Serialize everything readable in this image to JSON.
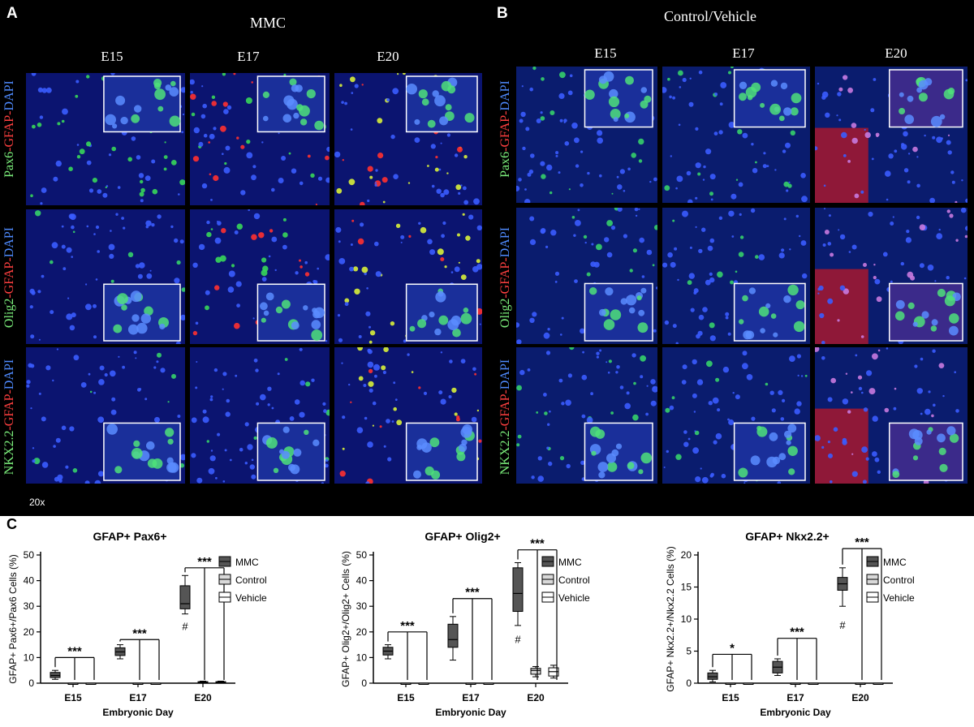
{
  "figure": {
    "panel_a": {
      "letter": "A",
      "group": "MMC",
      "columns": [
        "E15",
        "E17",
        "E20"
      ],
      "rows": [
        {
          "marker": "Pax6",
          "gfap": "GFAP",
          "dapi": "DAPI"
        },
        {
          "marker": "Olig2",
          "gfap": "GFAP",
          "dapi": "DAPI"
        },
        {
          "marker": "NKX2.2",
          "gfap": "GFAP",
          "dapi": "DAPI"
        }
      ],
      "magnification": "20x"
    },
    "panel_b": {
      "letter": "B",
      "group": "Control/Vehicle",
      "columns": [
        "E15",
        "E17",
        "E20"
      ],
      "rows": [
        {
          "marker": "Pax6",
          "gfap": "GFAP",
          "dapi": "DAPI"
        },
        {
          "marker": "Olig2",
          "gfap": "GFAP",
          "dapi": "DAPI"
        },
        {
          "marker": "NKX2.2",
          "gfap": "GFAP",
          "dapi": "DAPI"
        }
      ]
    },
    "panel_c": {
      "letter": "C"
    },
    "colors": {
      "green": "#3ddc5a",
      "red": "#ff2a2a",
      "blue": "#2f6bff",
      "mmc_box": "#555555",
      "control_box": "#d9d9d9",
      "vehicle_box": "#ffffff"
    }
  },
  "chart_data": [
    {
      "type": "box",
      "title": "GFAP+ Pax6+",
      "xlabel": "Embryonic Day",
      "ylabel": "GFAP+ Pax6+/Pax6 Cells  (%)",
      "categories": [
        "E15",
        "E17",
        "E20"
      ],
      "ylim": [
        0,
        50
      ],
      "yticks": [
        0,
        10,
        20,
        30,
        40,
        50
      ],
      "legend_position": "right",
      "series": [
        {
          "name": "MMC",
          "boxes": [
            [
              1.5,
              2.2,
              3.0,
              4.2,
              5.0
            ],
            [
              9.5,
              10.8,
              12.2,
              13.8,
              15.0
            ],
            [
              27,
              29,
              31,
              38,
              42
            ]
          ]
        },
        {
          "name": "Control",
          "boxes": [
            [
              0,
              0,
              0,
              0,
              0
            ],
            [
              0,
              0,
              0,
              0,
              0
            ],
            [
              0,
              0.1,
              0.3,
              0.6,
              0.8
            ]
          ]
        },
        {
          "name": "Vehicle",
          "boxes": [
            [
              0,
              0,
              0,
              0,
              0
            ],
            [
              0,
              0,
              0,
              0,
              0
            ],
            [
              0,
              0.1,
              0.3,
              0.6,
              0.8
            ]
          ]
        }
      ],
      "annotations": [
        {
          "category": "E15",
          "text": "***",
          "top": 10
        },
        {
          "category": "E17",
          "text": "***",
          "top": 17
        },
        {
          "category": "E20",
          "text": "***",
          "top": 45
        },
        {
          "category": "E20",
          "text": "#",
          "value": 22
        }
      ]
    },
    {
      "type": "box",
      "title": "GFAP+ Olig2+",
      "xlabel": "Embryonic Day",
      "ylabel": "GFAP+ Olig2+/Olig2+ Cells  (%)",
      "categories": [
        "E15",
        "E17",
        "E20"
      ],
      "ylim": [
        0,
        50
      ],
      "yticks": [
        0,
        10,
        20,
        30,
        40,
        50
      ],
      "legend_position": "right",
      "series": [
        {
          "name": "MMC",
          "boxes": [
            [
              9.5,
              11,
              12.5,
              14,
              15
            ],
            [
              9,
              14,
              17,
              23,
              26
            ],
            [
              22.5,
              28,
              35,
              45,
              47
            ]
          ]
        },
        {
          "name": "Control",
          "boxes": [
            [
              0,
              0,
              0,
              0,
              0
            ],
            [
              0,
              0,
              0,
              0,
              0
            ],
            [
              2.5,
              3.5,
              5,
              5.8,
              6.5
            ]
          ]
        },
        {
          "name": "Vehicle",
          "boxes": [
            [
              0,
              0,
              0,
              0,
              0
            ],
            [
              0,
              0,
              0,
              0,
              0
            ],
            [
              2,
              2.8,
              4.5,
              6,
              7
            ]
          ]
        }
      ],
      "annotations": [
        {
          "category": "E15",
          "text": "***",
          "top": 20
        },
        {
          "category": "E17",
          "text": "***",
          "top": 33
        },
        {
          "category": "E20",
          "text": "***",
          "top": 52
        },
        {
          "category": "E20",
          "text": "#",
          "value": 17
        }
      ]
    },
    {
      "type": "box",
      "title": "GFAP+ Nkx2.2+",
      "xlabel": "Embryonic Day",
      "ylabel": "GFAP+ Nkx2.2+/Nkx2.2 Cells (%)",
      "categories": [
        "E15",
        "E17",
        "E20"
      ],
      "ylim": [
        0,
        20
      ],
      "yticks": [
        0,
        5,
        10,
        15,
        20
      ],
      "legend_position": "right",
      "series": [
        {
          "name": "MMC",
          "boxes": [
            [
              0.2,
              0.6,
              1.0,
              1.6,
              2.0
            ],
            [
              1.2,
              1.6,
              2.5,
              3.4,
              3.8
            ],
            [
              12,
              14.5,
              15.5,
              16.5,
              18
            ]
          ]
        },
        {
          "name": "Control",
          "boxes": [
            [
              0,
              0,
              0,
              0,
              0
            ],
            [
              0,
              0,
              0,
              0,
              0
            ],
            [
              0,
              0,
              0,
              0,
              0
            ]
          ]
        },
        {
          "name": "Vehicle",
          "boxes": [
            [
              0,
              0,
              0,
              0,
              0
            ],
            [
              0,
              0,
              0,
              0,
              0
            ],
            [
              0,
              0,
              0,
              0,
              0
            ]
          ]
        }
      ],
      "annotations": [
        {
          "category": "E15",
          "text": "*",
          "top": 4.5
        },
        {
          "category": "E17",
          "text": "***",
          "top": 7
        },
        {
          "category": "E20",
          "text": "***",
          "top": 21
        },
        {
          "category": "E20",
          "text": "#",
          "value": 9
        }
      ]
    }
  ]
}
